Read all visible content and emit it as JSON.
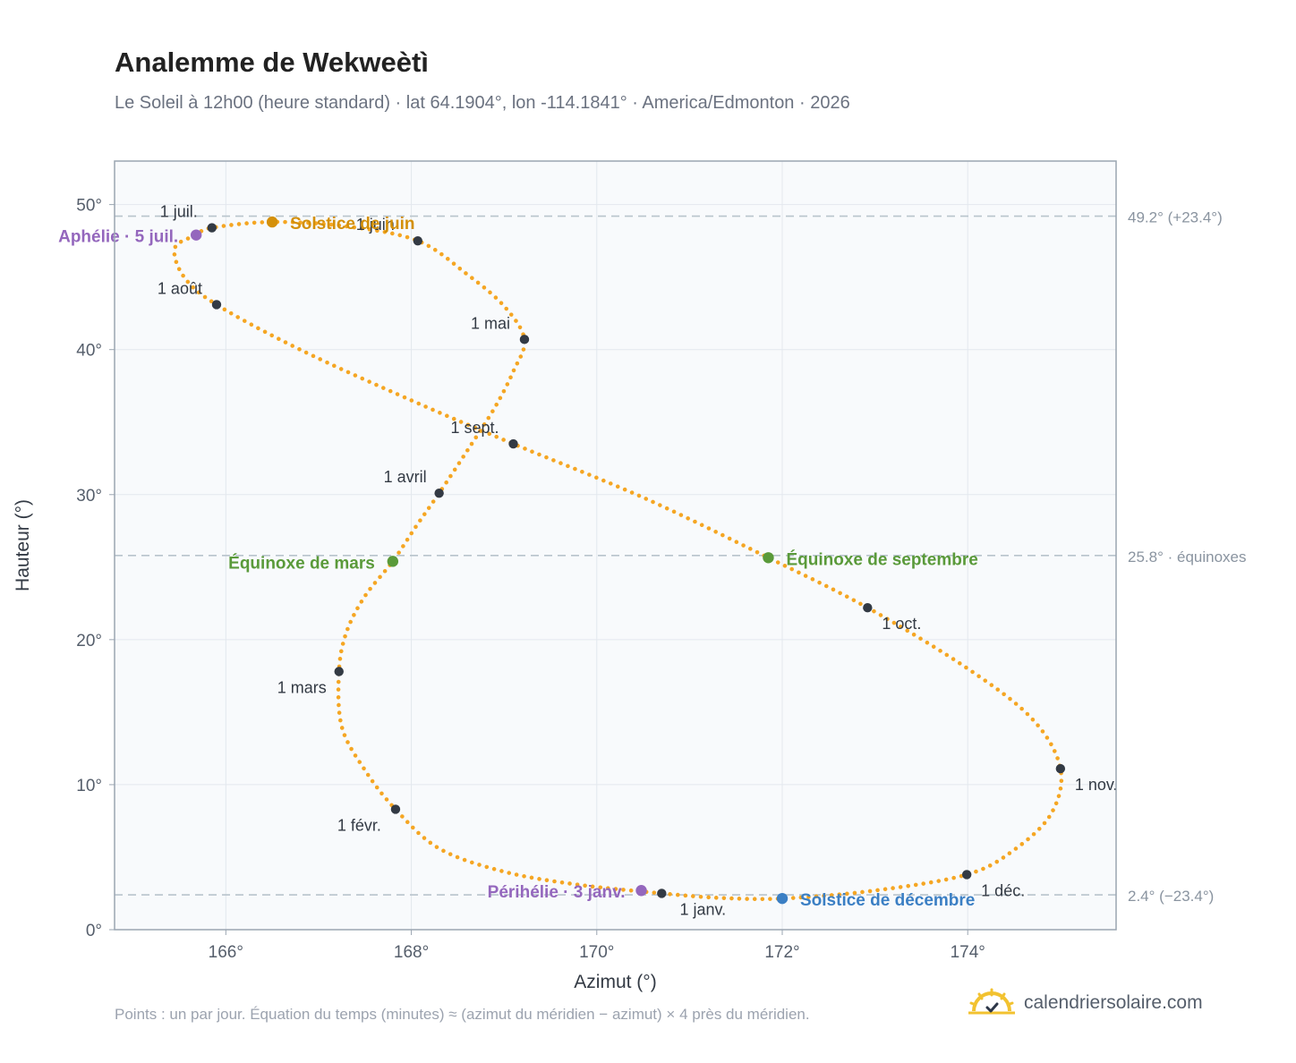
{
  "header": {
    "title": "Analemme de Wekweètì",
    "subtitle": "Le Soleil à 12h00 (heure standard) · lat 64.1904°, lon -114.1841° · America/Edmonton · 2026"
  },
  "footer": {
    "note": "Points : un par jour. Équation du temps (minutes) ≈ (azimut du méridien − azimut) × 4 près du méridien.",
    "brand": "calendriersolaire.com"
  },
  "colors": {
    "curve": "#f5a623",
    "month_point": "#333a44",
    "solstice_june": "#d4900a",
    "solstice_december": "#3b7fc4",
    "equinox": "#5a9a3a",
    "apsis": "#9467bd",
    "reference_line": "#b8c4cc",
    "plot_background": "#f8fafc"
  },
  "chart_data": {
    "type": "scatter",
    "xlabel": "Azimut (°)",
    "ylabel": "Hauteur (°)",
    "xlim": [
      164.8,
      175.6
    ],
    "ylim": [
      0,
      53
    ],
    "x_ticks": [
      166,
      168,
      170,
      172,
      174
    ],
    "x_tick_labels": [
      "166°",
      "168°",
      "170°",
      "172°",
      "174°"
    ],
    "y_ticks": [
      0,
      10,
      20,
      30,
      40,
      50
    ],
    "y_tick_labels": [
      "0°",
      "10°",
      "20°",
      "30°",
      "40°",
      "50°"
    ],
    "grid": true,
    "reference_lines": [
      {
        "y": 49.2,
        "label": "49.2° (+23.4°)"
      },
      {
        "y": 25.8,
        "label": "25.8° · équinoxes"
      },
      {
        "y": 2.4,
        "label": "2.4° (−23.4°)"
      }
    ],
    "analemma_path": [
      [
        170.7,
        2.5
      ],
      [
        169.8,
        3.1
      ],
      [
        169.0,
        4.0
      ],
      [
        168.3,
        5.6
      ],
      [
        167.83,
        8.3
      ],
      [
        167.5,
        11.0
      ],
      [
        167.25,
        14.0
      ],
      [
        167.22,
        17.8
      ],
      [
        167.3,
        20.5
      ],
      [
        167.5,
        23.0
      ],
      [
        167.8,
        25.4
      ],
      [
        168.05,
        27.8
      ],
      [
        168.3,
        30.1
      ],
      [
        168.6,
        33.0
      ],
      [
        168.9,
        36.0
      ],
      [
        169.1,
        38.5
      ],
      [
        169.22,
        40.7
      ],
      [
        169.0,
        43.0
      ],
      [
        168.6,
        45.2
      ],
      [
        168.07,
        47.5
      ],
      [
        167.3,
        48.5
      ],
      [
        166.5,
        48.8
      ],
      [
        165.85,
        48.4
      ],
      [
        165.68,
        47.9
      ],
      [
        165.45,
        47.0
      ],
      [
        165.55,
        45.0
      ],
      [
        165.9,
        43.1
      ],
      [
        166.8,
        40.0
      ],
      [
        168.0,
        36.5
      ],
      [
        169.1,
        33.5
      ],
      [
        170.5,
        29.8
      ],
      [
        171.85,
        25.65
      ],
      [
        172.92,
        22.2
      ],
      [
        174.0,
        18.0
      ],
      [
        174.7,
        14.5
      ],
      [
        175.0,
        11.1
      ],
      [
        174.9,
        8.0
      ],
      [
        174.5,
        5.5
      ],
      [
        173.99,
        3.8
      ],
      [
        173.0,
        2.7
      ],
      [
        172.0,
        2.15
      ],
      [
        171.3,
        2.2
      ],
      [
        170.7,
        2.5
      ]
    ],
    "month_markers": [
      {
        "label": "1 janv.",
        "az": 170.7,
        "alt": 2.5
      },
      {
        "label": "1 févr.",
        "az": 167.83,
        "alt": 8.3
      },
      {
        "label": "1 mars",
        "az": 167.22,
        "alt": 17.8
      },
      {
        "label": "1 avril",
        "az": 168.3,
        "alt": 30.1
      },
      {
        "label": "1 mai",
        "az": 169.22,
        "alt": 40.7
      },
      {
        "label": "1 juin",
        "az": 168.07,
        "alt": 47.5
      },
      {
        "label": "1 juil.",
        "az": 165.85,
        "alt": 48.4
      },
      {
        "label": "1 août",
        "az": 165.9,
        "alt": 43.1
      },
      {
        "label": "1 sept.",
        "az": 169.1,
        "alt": 33.5
      },
      {
        "label": "1 oct.",
        "az": 172.92,
        "alt": 22.2
      },
      {
        "label": "1 nov.",
        "az": 175.0,
        "alt": 11.1
      },
      {
        "label": "1 déc.",
        "az": 173.99,
        "alt": 3.8
      }
    ],
    "events": [
      {
        "label": "Solstice de juin",
        "az": 166.5,
        "alt": 48.8,
        "kind": "solstice_june"
      },
      {
        "label": "Aphélie · 5 juil.",
        "az": 165.68,
        "alt": 47.9,
        "kind": "apsis"
      },
      {
        "label": "Équinoxe de mars",
        "az": 167.8,
        "alt": 25.4,
        "kind": "equinox"
      },
      {
        "label": "Équinoxe de septembre",
        "az": 171.85,
        "alt": 25.65,
        "kind": "equinox"
      },
      {
        "label": "Périhélie · 3 janv.",
        "az": 170.48,
        "alt": 2.7,
        "kind": "apsis"
      },
      {
        "label": "Solstice de décembre",
        "az": 172.0,
        "alt": 2.15,
        "kind": "solstice_december"
      }
    ]
  }
}
